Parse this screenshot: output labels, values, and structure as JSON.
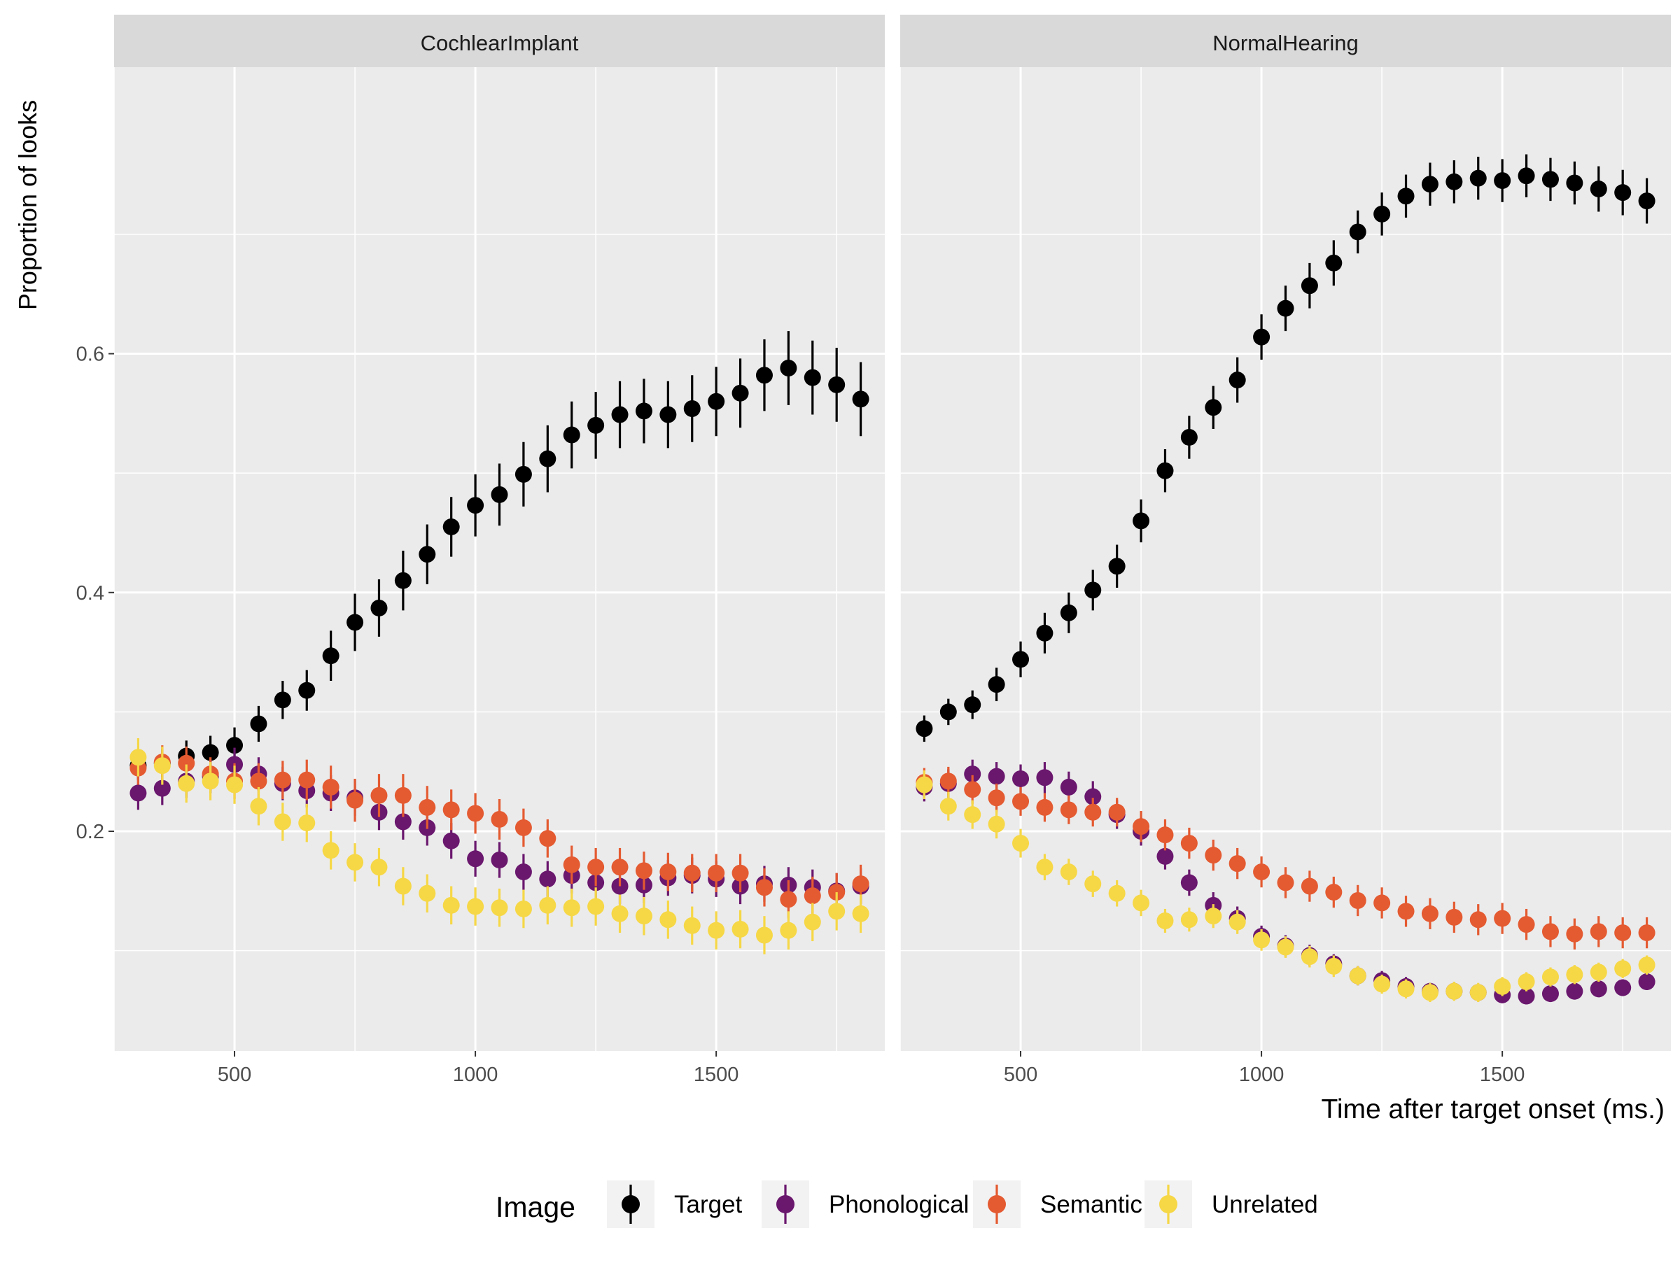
{
  "chart_data": {
    "type": "scatter",
    "facet_variable": "hearing group",
    "panels": [
      "CochlearImplant",
      "NormalHearing"
    ],
    "xlabel": "Time after target onset (ms.)",
    "ylabel": "Proportion of looks",
    "x_ticks": [
      500,
      1000,
      1500
    ],
    "y_ticks": [
      0.2,
      0.4,
      0.6
    ],
    "xlim": [
      250,
      1850
    ],
    "ylim": [
      0.016,
      0.84
    ],
    "grid": true,
    "geom": "points with error bars",
    "legend": {
      "title": "Image",
      "position": "bottom",
      "entries": [
        "Target",
        "Phonological",
        "Semantic",
        "Unrelated"
      ]
    },
    "x": [
      300,
      350,
      400,
      450,
      500,
      550,
      600,
      650,
      700,
      750,
      800,
      850,
      900,
      950,
      1000,
      1050,
      1100,
      1150,
      1200,
      1250,
      1300,
      1350,
      1400,
      1450,
      1500,
      1550,
      1600,
      1650,
      1700,
      1750,
      1800
    ],
    "series": [
      {
        "name": "Target",
        "color": "#000000",
        "CochlearImplant": [
          0.255,
          0.257,
          0.263,
          0.266,
          0.272,
          0.29,
          0.31,
          0.318,
          0.347,
          0.375,
          0.387,
          0.41,
          0.432,
          0.455,
          0.473,
          0.482,
          0.499,
          0.512,
          0.532,
          0.54,
          0.549,
          0.552,
          0.549,
          0.554,
          0.56,
          0.567,
          0.582,
          0.588,
          0.58,
          0.574,
          0.562
        ],
        "NormalHearing": [
          0.286,
          0.3,
          0.306,
          0.323,
          0.344,
          0.366,
          0.383,
          0.402,
          0.422,
          0.46,
          0.502,
          0.53,
          0.555,
          0.578,
          0.614,
          0.638,
          0.657,
          0.676,
          0.702,
          0.717,
          0.732,
          0.742,
          0.744,
          0.747,
          0.745,
          0.749,
          0.746,
          0.743,
          0.738,
          0.735,
          0.728
        ],
        "CochlearImplant_err": [
          0.012,
          0.012,
          0.013,
          0.014,
          0.015,
          0.015,
          0.016,
          0.017,
          0.021,
          0.024,
          0.024,
          0.025,
          0.025,
          0.025,
          0.026,
          0.026,
          0.027,
          0.028,
          0.028,
          0.028,
          0.028,
          0.027,
          0.028,
          0.028,
          0.029,
          0.029,
          0.03,
          0.031,
          0.031,
          0.031,
          0.031
        ],
        "NormalHearing_err": [
          0.011,
          0.011,
          0.012,
          0.014,
          0.015,
          0.017,
          0.017,
          0.017,
          0.018,
          0.018,
          0.018,
          0.018,
          0.018,
          0.019,
          0.019,
          0.019,
          0.019,
          0.019,
          0.018,
          0.018,
          0.018,
          0.018,
          0.018,
          0.018,
          0.018,
          0.018,
          0.018,
          0.018,
          0.019,
          0.019,
          0.019
        ]
      },
      {
        "name": "Phonological",
        "color": "#6a176e",
        "CochlearImplant": [
          0.232,
          0.236,
          0.242,
          0.246,
          0.256,
          0.248,
          0.24,
          0.234,
          0.232,
          0.228,
          0.216,
          0.208,
          0.203,
          0.192,
          0.177,
          0.176,
          0.166,
          0.16,
          0.163,
          0.157,
          0.154,
          0.155,
          0.161,
          0.163,
          0.16,
          0.154,
          0.156,
          0.155,
          0.153,
          0.15,
          0.154
        ],
        "NormalHearing": [
          0.237,
          0.24,
          0.248,
          0.246,
          0.244,
          0.245,
          0.237,
          0.229,
          0.214,
          0.2,
          0.179,
          0.157,
          0.138,
          0.127,
          0.112,
          0.104,
          0.096,
          0.089,
          0.079,
          0.075,
          0.07,
          0.066,
          0.066,
          0.065,
          0.063,
          0.062,
          0.064,
          0.066,
          0.068,
          0.069,
          0.074
        ],
        "CochlearImplant_err": [
          0.014,
          0.014,
          0.014,
          0.014,
          0.014,
          0.014,
          0.014,
          0.014,
          0.015,
          0.015,
          0.015,
          0.015,
          0.015,
          0.015,
          0.015,
          0.015,
          0.015,
          0.015,
          0.015,
          0.015,
          0.015,
          0.015,
          0.015,
          0.015,
          0.015,
          0.015,
          0.015,
          0.015,
          0.015,
          0.015,
          0.015
        ],
        "NormalHearing_err": [
          0.012,
          0.012,
          0.012,
          0.012,
          0.012,
          0.013,
          0.013,
          0.013,
          0.012,
          0.012,
          0.011,
          0.011,
          0.011,
          0.01,
          0.009,
          0.009,
          0.009,
          0.008,
          0.008,
          0.008,
          0.008,
          0.007,
          0.007,
          0.007,
          0.007,
          0.007,
          0.007,
          0.007,
          0.007,
          0.007,
          0.007
        ]
      },
      {
        "name": "Semantic",
        "color": "#e45a31",
        "CochlearImplant": [
          0.253,
          0.258,
          0.257,
          0.248,
          0.242,
          0.242,
          0.243,
          0.243,
          0.237,
          0.226,
          0.23,
          0.23,
          0.22,
          0.218,
          0.215,
          0.21,
          0.203,
          0.194,
          0.172,
          0.17,
          0.17,
          0.167,
          0.166,
          0.165,
          0.165,
          0.165,
          0.153,
          0.143,
          0.146,
          0.149,
          0.156
        ],
        "NormalHearing": [
          0.241,
          0.242,
          0.235,
          0.228,
          0.225,
          0.22,
          0.218,
          0.216,
          0.216,
          0.204,
          0.197,
          0.19,
          0.18,
          0.173,
          0.166,
          0.157,
          0.154,
          0.149,
          0.142,
          0.14,
          0.133,
          0.131,
          0.128,
          0.126,
          0.127,
          0.122,
          0.116,
          0.114,
          0.116,
          0.115,
          0.115
        ],
        "CochlearImplant_err": [
          0.014,
          0.014,
          0.014,
          0.014,
          0.015,
          0.015,
          0.016,
          0.017,
          0.018,
          0.018,
          0.018,
          0.018,
          0.018,
          0.017,
          0.017,
          0.017,
          0.016,
          0.016,
          0.016,
          0.016,
          0.016,
          0.016,
          0.016,
          0.016,
          0.016,
          0.016,
          0.016,
          0.016,
          0.016,
          0.016,
          0.016
        ],
        "NormalHearing_err": [
          0.012,
          0.012,
          0.012,
          0.012,
          0.012,
          0.012,
          0.012,
          0.012,
          0.012,
          0.013,
          0.013,
          0.013,
          0.013,
          0.013,
          0.013,
          0.013,
          0.013,
          0.013,
          0.013,
          0.013,
          0.013,
          0.013,
          0.013,
          0.013,
          0.013,
          0.013,
          0.013,
          0.013,
          0.013,
          0.013,
          0.013
        ]
      },
      {
        "name": "Unrelated",
        "color": "#f6d746",
        "CochlearImplant": [
          0.262,
          0.255,
          0.24,
          0.242,
          0.239,
          0.221,
          0.208,
          0.207,
          0.184,
          0.174,
          0.17,
          0.154,
          0.148,
          0.138,
          0.137,
          0.136,
          0.135,
          0.138,
          0.136,
          0.137,
          0.131,
          0.129,
          0.126,
          0.121,
          0.117,
          0.118,
          0.113,
          0.117,
          0.124,
          0.133,
          0.131
        ],
        "NormalHearing": [
          0.239,
          0.221,
          0.214,
          0.206,
          0.19,
          0.17,
          0.166,
          0.156,
          0.148,
          0.14,
          0.125,
          0.126,
          0.129,
          0.124,
          0.109,
          0.103,
          0.095,
          0.087,
          0.079,
          0.072,
          0.068,
          0.065,
          0.066,
          0.065,
          0.07,
          0.074,
          0.078,
          0.08,
          0.082,
          0.085,
          0.088
        ],
        "CochlearImplant_err": [
          0.016,
          0.016,
          0.016,
          0.016,
          0.016,
          0.016,
          0.016,
          0.016,
          0.016,
          0.016,
          0.016,
          0.016,
          0.016,
          0.016,
          0.016,
          0.016,
          0.016,
          0.016,
          0.016,
          0.016,
          0.016,
          0.016,
          0.016,
          0.016,
          0.016,
          0.016,
          0.016,
          0.016,
          0.016,
          0.016,
          0.016
        ],
        "NormalHearing_err": [
          0.012,
          0.012,
          0.012,
          0.012,
          0.012,
          0.011,
          0.011,
          0.011,
          0.011,
          0.011,
          0.01,
          0.01,
          0.01,
          0.01,
          0.009,
          0.009,
          0.009,
          0.009,
          0.008,
          0.008,
          0.008,
          0.008,
          0.008,
          0.008,
          0.008,
          0.008,
          0.008,
          0.008,
          0.008,
          0.008,
          0.008
        ]
      }
    ]
  }
}
